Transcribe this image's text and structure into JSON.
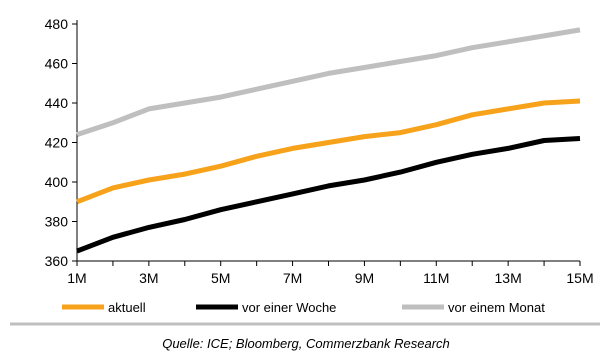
{
  "chart_data": {
    "type": "line",
    "title": "",
    "xlabel": "",
    "ylabel": "",
    "x": [
      "1M",
      "2M",
      "3M",
      "4M",
      "5M",
      "6M",
      "7M",
      "8M",
      "9M",
      "10M",
      "11M",
      "12M",
      "13M",
      "14M",
      "15M"
    ],
    "x_tick_labels": [
      "1M",
      "3M",
      "5M",
      "7M",
      "9M",
      "11M",
      "13M",
      "15M"
    ],
    "ylim": [
      360,
      480
    ],
    "y_ticks": [
      360,
      380,
      400,
      420,
      440,
      460,
      480
    ],
    "grid": false,
    "legend_position": "bottom",
    "series": [
      {
        "name": "aktuell",
        "color": "#F7A21B",
        "values": [
          390,
          397,
          401,
          404,
          408,
          413,
          417,
          420,
          423,
          425,
          429,
          434,
          437,
          440,
          441
        ]
      },
      {
        "name": "vor einer Woche",
        "color": "#000000",
        "values": [
          365,
          372,
          377,
          381,
          386,
          390,
          394,
          398,
          401,
          405,
          410,
          414,
          417,
          421,
          422
        ]
      },
      {
        "name": "vor einem Monat",
        "color": "#BFBFBF",
        "values": [
          424,
          430,
          437,
          440,
          443,
          447,
          451,
          455,
          458,
          461,
          464,
          468,
          471,
          474,
          477
        ]
      }
    ]
  },
  "source": "Quelle: ICE; Bloomberg, Commerzbank Research"
}
